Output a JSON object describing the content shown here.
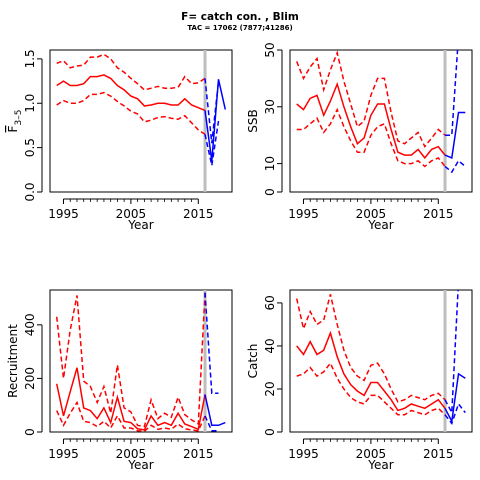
{
  "header": {
    "title": "F= catch con. , Blim",
    "subtitle": "TAC = 17062 (7877;41286)"
  },
  "colors": {
    "historic": "#ff0000",
    "projection": "#0000ff",
    "divider": "#bebebe"
  },
  "chart_data": [
    {
      "type": "line",
      "title": "",
      "xlabel": "Year",
      "ylabel": "F̅ 3–5",
      "ylabel_main": "F",
      "ylabel_sub": "3–5",
      "ylabel_overline": true,
      "xlim": [
        1993,
        2020
      ],
      "ylim": [
        0,
        1.6
      ],
      "xticks": [
        1995,
        2005,
        2015
      ],
      "yticks": [
        0.0,
        0.5,
        1.0,
        1.5
      ],
      "ytick_labels": [
        "0.0",
        "0.5",
        "1.0",
        "1.5"
      ],
      "vline": 2016,
      "historic": {
        "x": [
          1994,
          1995,
          1996,
          1997,
          1998,
          1999,
          2000,
          2001,
          2002,
          2003,
          2004,
          2005,
          2006,
          2007,
          2008,
          2009,
          2010,
          2011,
          2012,
          2013,
          2014,
          2015,
          2016
        ],
        "median": [
          1.2,
          1.25,
          1.2,
          1.2,
          1.22,
          1.3,
          1.3,
          1.32,
          1.28,
          1.2,
          1.15,
          1.08,
          1.05,
          0.97,
          0.98,
          1.0,
          1.0,
          0.98,
          0.98,
          1.05,
          0.98,
          0.95,
          0.92
        ],
        "upper": [
          1.45,
          1.48,
          1.4,
          1.42,
          1.43,
          1.52,
          1.52,
          1.55,
          1.5,
          1.4,
          1.35,
          1.28,
          1.22,
          1.15,
          1.17,
          1.19,
          1.17,
          1.17,
          1.18,
          1.3,
          1.22,
          1.23,
          1.28
        ],
        "lower": [
          0.98,
          1.03,
          1.0,
          1.0,
          1.03,
          1.1,
          1.1,
          1.12,
          1.08,
          1.02,
          0.97,
          0.91,
          0.88,
          0.79,
          0.81,
          0.84,
          0.85,
          0.83,
          0.82,
          0.86,
          0.78,
          0.7,
          0.65
        ]
      },
      "projection": {
        "x": [
          2016,
          2017,
          2018,
          2019
        ],
        "median": [
          0.92,
          0.35,
          1.27,
          0.93
        ],
        "upper": [
          1.28,
          0.55,
          1.25,
          null
        ],
        "lower": [
          0.65,
          0.3,
          0.8,
          null
        ]
      }
    },
    {
      "type": "line",
      "title": "",
      "xlabel": "Year",
      "ylabel": "SSB",
      "xlim": [
        1993,
        2020
      ],
      "ylim": [
        0,
        50
      ],
      "xticks": [
        1995,
        2005,
        2015
      ],
      "yticks": [
        0,
        10,
        30,
        50
      ],
      "ytick_labels": [
        "0",
        "10",
        "30",
        "50"
      ],
      "vline": 2016,
      "historic": {
        "x": [
          1994,
          1995,
          1996,
          1997,
          1998,
          1999,
          2000,
          2001,
          2002,
          2003,
          2004,
          2005,
          2006,
          2007,
          2008,
          2009,
          2010,
          2011,
          2012,
          2013,
          2014,
          2015,
          2016
        ],
        "median": [
          31,
          29,
          33,
          34,
          27,
          32,
          38,
          30,
          23,
          17,
          19,
          27,
          31,
          31,
          22,
          14,
          13,
          13,
          15,
          12,
          15,
          16,
          13
        ],
        "upper": [
          46,
          40,
          44,
          47,
          36,
          43,
          49,
          39,
          31,
          23,
          25,
          34,
          40,
          40,
          28,
          18,
          17,
          19,
          21,
          16,
          19,
          22,
          20
        ],
        "lower": [
          22,
          22,
          24,
          26,
          21,
          24,
          29,
          23,
          18,
          14,
          14,
          20,
          23,
          24,
          17,
          11,
          10,
          10,
          11,
          9,
          11,
          12,
          9
        ]
      },
      "projection": {
        "x": [
          2016,
          2017,
          2018,
          2019
        ],
        "median": [
          13,
          12,
          28,
          28
        ],
        "upper": [
          20,
          20,
          55,
          null
        ],
        "lower": [
          9,
          7,
          11,
          9
        ]
      }
    },
    {
      "type": "line",
      "title": "",
      "xlabel": "Year",
      "ylabel": "Recruitment",
      "xlim": [
        1993,
        2020
      ],
      "ylim": [
        0,
        530
      ],
      "xticks": [
        1995,
        2005,
        2015
      ],
      "yticks": [
        0,
        200,
        400
      ],
      "ytick_labels": [
        "0",
        "200",
        "400"
      ],
      "vline": 2016,
      "historic": {
        "x": [
          1994,
          1995,
          1996,
          1997,
          1998,
          1999,
          2000,
          2001,
          2002,
          2003,
          2004,
          2005,
          2006,
          2007,
          2008,
          2009,
          2010,
          2011,
          2012,
          2013,
          2014,
          2015,
          2016
        ],
        "median": [
          180,
          60,
          150,
          240,
          90,
          80,
          50,
          90,
          35,
          130,
          40,
          35,
          12,
          8,
          60,
          25,
          35,
          25,
          70,
          30,
          20,
          10,
          140
        ],
        "upper": [
          430,
          200,
          380,
          510,
          190,
          170,
          110,
          170,
          70,
          250,
          90,
          75,
          25,
          20,
          120,
          50,
          70,
          55,
          130,
          65,
          45,
          30,
          520
        ],
        "lower": [
          80,
          25,
          70,
          110,
          40,
          35,
          20,
          40,
          15,
          60,
          15,
          15,
          5,
          3,
          25,
          10,
          15,
          10,
          30,
          12,
          8,
          4,
          60
        ]
      },
      "projection": {
        "x": [
          2016,
          2017,
          2018,
          2019
        ],
        "median": [
          140,
          25,
          25,
          35
        ],
        "upper": [
          520,
          145,
          145,
          null
        ],
        "lower": [
          60,
          5,
          5,
          null
        ]
      }
    },
    {
      "type": "line",
      "title": "",
      "xlabel": "Year",
      "ylabel": "Catch",
      "xlim": [
        1993,
        2020
      ],
      "ylim": [
        0,
        66
      ],
      "xticks": [
        1995,
        2005,
        2015
      ],
      "yticks": [
        0,
        20,
        40,
        60
      ],
      "ytick_labels": [
        "0",
        "20",
        "40",
        "60"
      ],
      "vline": 2016,
      "historic": {
        "x": [
          1994,
          1995,
          1996,
          1997,
          1998,
          1999,
          2000,
          2001,
          2002,
          2003,
          2004,
          2005,
          2006,
          2007,
          2008,
          2009,
          2010,
          2011,
          2012,
          2013,
          2014,
          2015,
          2016
        ],
        "median": [
          40,
          36,
          42,
          36,
          38,
          46,
          35,
          27,
          22,
          19,
          17,
          23,
          23,
          19,
          15,
          10,
          11,
          13,
          12,
          11,
          13,
          15,
          11
        ],
        "upper": [
          62,
          48,
          56,
          50,
          52,
          64,
          50,
          38,
          30,
          26,
          24,
          31,
          32,
          27,
          20,
          14,
          15,
          17,
          16,
          15,
          17,
          18,
          15
        ],
        "lower": [
          26,
          27,
          30,
          26,
          28,
          32,
          25,
          20,
          16,
          14,
          13,
          17,
          17,
          14,
          11,
          8,
          8,
          10,
          9,
          8,
          10,
          11,
          8
        ]
      },
      "projection": {
        "x": [
          2016,
          2017,
          2018,
          2019
        ],
        "median": [
          11,
          5,
          27,
          25
        ],
        "upper": [
          15,
          9,
          70,
          null
        ],
        "lower": [
          8,
          4,
          13,
          9
        ]
      }
    }
  ]
}
